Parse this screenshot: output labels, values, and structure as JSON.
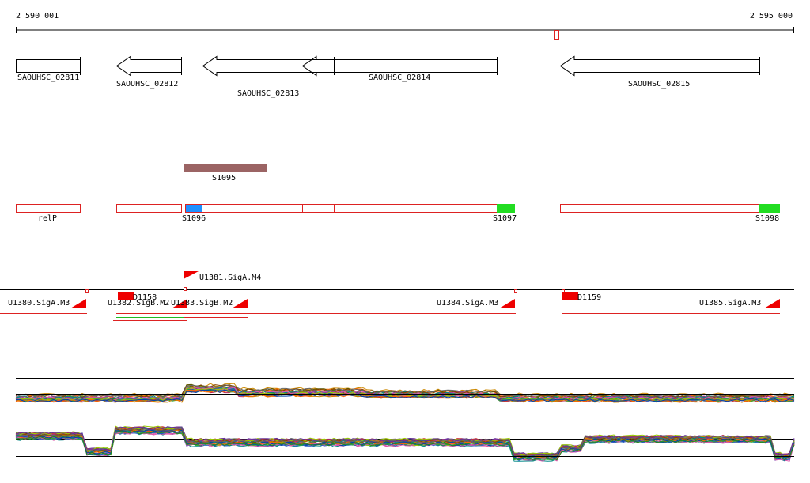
{
  "scale": {
    "start_label": "2 590 001",
    "end_label": "2 595 000"
  },
  "genes": [
    {
      "name": "SAOUHSC_02811",
      "strand": "+"
    },
    {
      "name": "SAOUHSC_02812",
      "strand": "-"
    },
    {
      "name": "SAOUHSC_02813",
      "strand": "-"
    },
    {
      "name": "SAOUHSC_02814",
      "strand": "-"
    },
    {
      "name": "SAOUHSC_02815",
      "strand": "-"
    }
  ],
  "sRNA": {
    "name": "S1095",
    "color": "#9b6464"
  },
  "transcript_segments": [
    {
      "name": "relP"
    },
    {
      "name": "S1096",
      "color": "#1e90ff"
    },
    {
      "name": "S1097",
      "color": "#22dd22"
    },
    {
      "name": "S1098",
      "color": "#22dd22"
    }
  ],
  "promoters": [
    {
      "name": "U1380.SigA.M3"
    },
    {
      "name": "U1381.SigA.M4"
    },
    {
      "name": "U1382.SigB.M2"
    },
    {
      "name": "U1383.SigB.M2"
    },
    {
      "name": "U1384.SigA.M3"
    },
    {
      "name": "U1385.SigA.M3"
    }
  ],
  "downregulated": [
    {
      "name": "D1158"
    },
    {
      "name": "D1159"
    }
  ],
  "colors": {
    "gene_outline": "#000000",
    "feature_outline": "#dd2222",
    "promoter_red": "#ee0000"
  }
}
